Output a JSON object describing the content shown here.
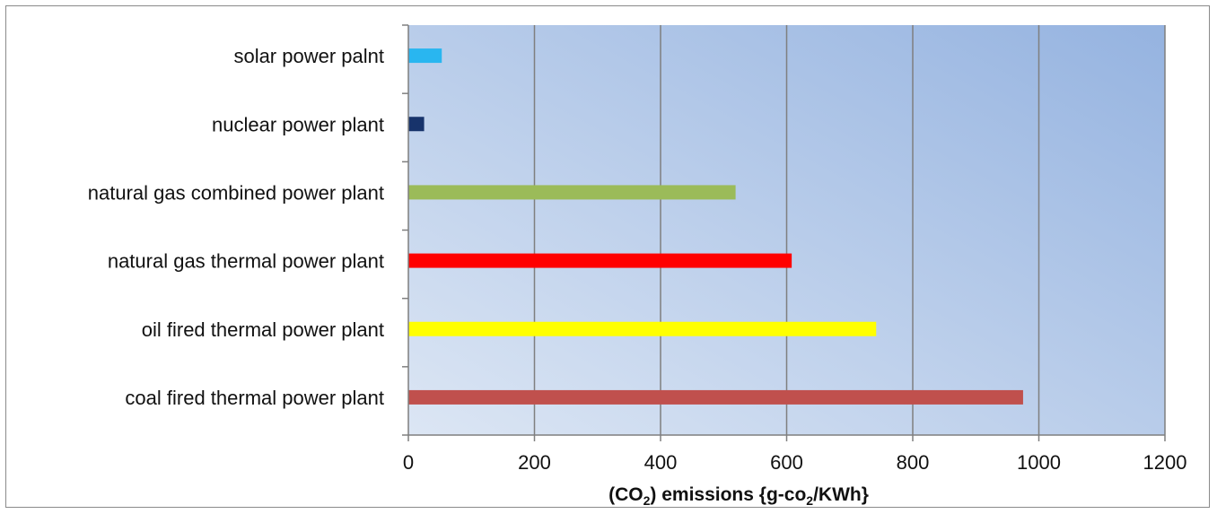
{
  "chart_data": {
    "type": "bar",
    "orientation": "horizontal",
    "categories": [
      "solar power palnt",
      "nuclear power plant",
      "natural gas combined power plant",
      "natural gas thermal power plant",
      "oil fired thermal power plant",
      "coal fired thermal power plant"
    ],
    "values": [
      53,
      25,
      519,
      608,
      742,
      975
    ],
    "bar_colors": [
      "#29b6f0",
      "#17336b",
      "#9bbb59",
      "#ff0000",
      "#ffff00",
      "#c0504d"
    ],
    "xlim": [
      0,
      1200
    ],
    "xticks": [
      "0",
      "200",
      "400",
      "600",
      "800",
      "1000",
      "1200"
    ],
    "xlabel": {
      "prefix": "(CO",
      "sub1": "2",
      "middle": ") emissions  {g-co",
      "sub2": "2",
      "suffix": "/KWh}"
    },
    "grid": true,
    "plot_background": [
      "#dce6f4",
      "#95b3e0"
    ]
  }
}
